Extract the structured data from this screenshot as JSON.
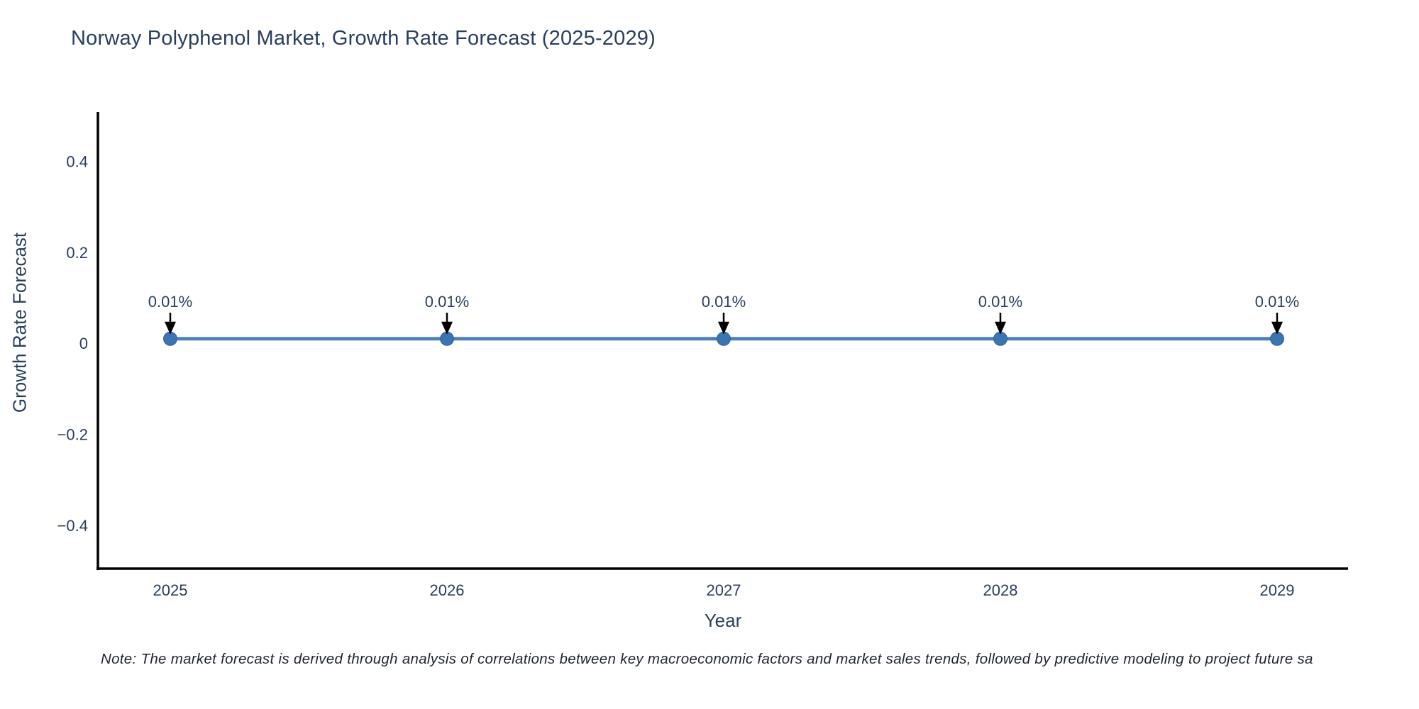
{
  "chart": {
    "note": "Note: The market forecast is derived through analysis of correlations between key macroeconomic factors and market sales trends, followed by predictive modeling to project future sa"
  },
  "chart_data": {
    "type": "line",
    "title": "Norway Polyphenol Market, Growth Rate Forecast (2025-2029)",
    "xlabel": "Year",
    "ylabel": "Growth Rate Forecast",
    "categories": [
      "2025",
      "2026",
      "2027",
      "2028",
      "2029"
    ],
    "series": [
      {
        "name": "Growth Rate Forecast",
        "values": [
          0.01,
          0.01,
          0.01,
          0.01,
          0.01
        ]
      }
    ],
    "point_labels": [
      "0.01%",
      "0.01%",
      "0.01%",
      "0.01%",
      "0.01%"
    ],
    "ylim": [
      -0.495,
      0.505
    ],
    "yticks": {
      "values": [
        0.4,
        0.2,
        0,
        -0.2,
        -0.4
      ],
      "labels": [
        "0.4",
        "0.2",
        "0",
        "−0.2",
        "−0.4"
      ]
    },
    "xtick_labels": [
      "2025",
      "2026",
      "2027",
      "2028",
      "2029"
    ],
    "grid": false,
    "legend_position": "none",
    "colors": {
      "line": "#4d81b8",
      "marker": "#3b74b0",
      "marker_edge": "#2f639c",
      "axis": "#000000",
      "text": "#2a3f5f",
      "annotation": "#2a3f5f",
      "arrow": "#000000"
    }
  }
}
